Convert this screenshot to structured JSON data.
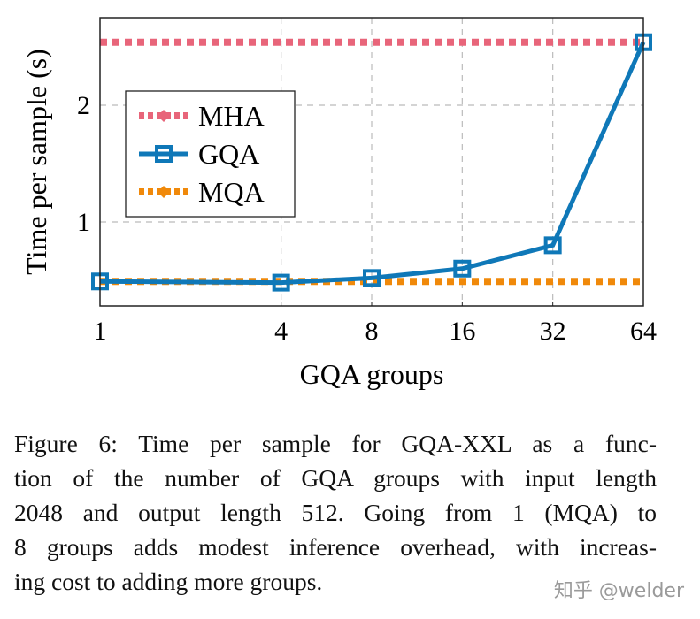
{
  "chart_data": {
    "type": "line",
    "xlabel": "GQA groups",
    "ylabel": "Time per sample (s)",
    "x_scale": "log2",
    "x": [
      1,
      4,
      8,
      16,
      32,
      64
    ],
    "x_tick_labels": [
      "1",
      "4",
      "8",
      "16",
      "32",
      "64"
    ],
    "y_ticks": [
      1,
      2
    ],
    "y_tick_labels": [
      "1",
      "2"
    ],
    "xlim": [
      1,
      64
    ],
    "ylim": [
      0.28,
      2.75
    ],
    "grid": true,
    "legend_position": "center-left",
    "series": [
      {
        "name": "MHA",
        "color": "#e8657a",
        "style": "dotted",
        "marker": "diamond",
        "values": [
          2.54,
          2.54,
          2.54,
          2.54,
          2.54,
          2.54
        ]
      },
      {
        "name": "GQA",
        "color": "#0f78b8",
        "style": "solid",
        "marker": "square",
        "values": [
          0.49,
          0.48,
          0.52,
          0.6,
          0.8,
          2.54
        ]
      },
      {
        "name": "MQA",
        "color": "#f0890a",
        "style": "dotted",
        "marker": "diamond",
        "values": [
          0.49,
          0.49,
          0.49,
          0.49,
          0.49,
          0.49
        ]
      }
    ]
  },
  "caption": {
    "lines": [
      "Figure 6: Time per sample for GQA-XXL as a func-",
      "tion of the number of GQA groups with input length",
      "2048 and output length 512. Going from 1 (MQA) to",
      "8 groups adds modest inference overhead, with increas-",
      "ing cost to adding more groups."
    ]
  },
  "watermark": "知乎 @welder"
}
